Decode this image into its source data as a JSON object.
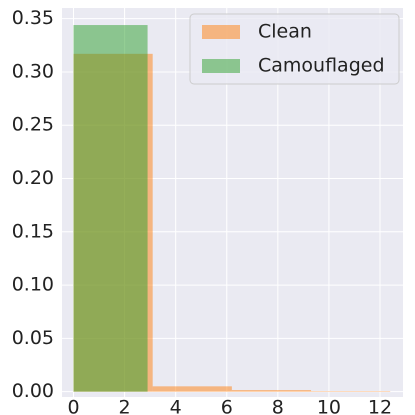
{
  "chart_data": {
    "type": "histogram",
    "series": [
      {
        "name": "Clean",
        "color": "#ff7f0e",
        "bins": [
          0,
          3.1,
          6.2,
          9.3,
          12.4
        ],
        "values": [
          0.317,
          0.005,
          0.0015,
          0.0005
        ]
      },
      {
        "name": "Camouflaged",
        "color": "#2ca02c",
        "bins": [
          0,
          2.9
        ],
        "values": [
          0.344
        ]
      }
    ],
    "alpha": 0.5,
    "xlim": [
      -0.45,
      12.9
    ],
    "ylim": [
      -0.005,
      0.36
    ],
    "xticks": [
      0,
      2,
      4,
      6,
      8,
      10,
      12
    ],
    "yticks": [
      {
        "value": 0,
        "label": "0.00"
      },
      0.05,
      {
        "value": 0.1,
        "label": "0.10"
      },
      0.15,
      {
        "value": 0.2,
        "label": "0.20"
      },
      0.25,
      {
        "value": 0.3,
        "label": "0.30"
      },
      0.35
    ],
    "grid": true,
    "legend": "upper right"
  }
}
